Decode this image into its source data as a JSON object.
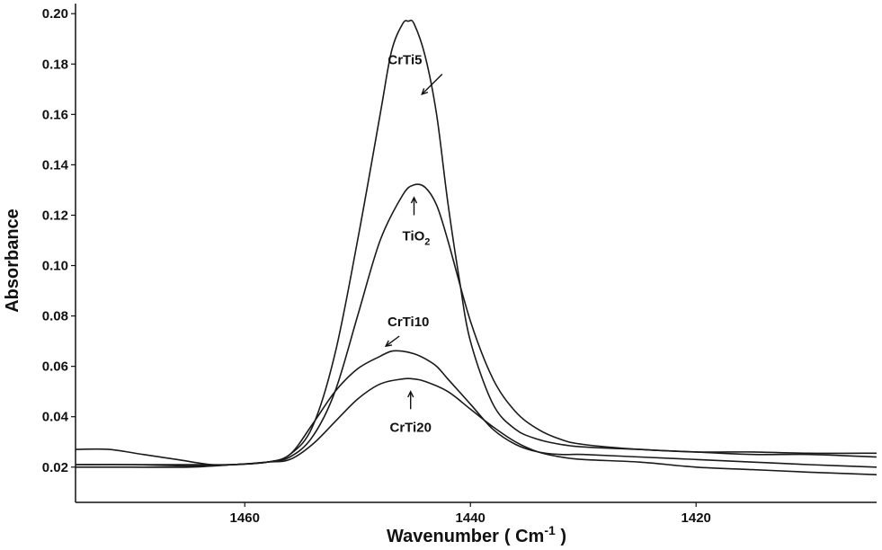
{
  "chart_data": {
    "type": "line",
    "title": "",
    "xlabel": "Wavenumber",
    "xlabel_unit_open": "( ",
    "xlabel_unit_base": "Cm",
    "xlabel_unit_sup": "-1",
    "xlabel_unit_close": " )",
    "ylabel": "Absorbance",
    "xlim": [
      1475,
      1404
    ],
    "ylim": [
      0.006,
      0.204
    ],
    "x_reversed": true,
    "grid": false,
    "xticks": [
      1460,
      1440,
      1420
    ],
    "xtick_labels": [
      "1460",
      "1440",
      "1420"
    ],
    "yticks": [
      0.02,
      0.04,
      0.06,
      0.08,
      0.1,
      0.12,
      0.14,
      0.16,
      0.18,
      0.2
    ],
    "ytick_labels": [
      "0.02",
      "0.04",
      "0.06",
      "0.08",
      "0.10",
      "0.12",
      "0.14",
      "0.16",
      "0.18",
      "0.20"
    ],
    "series": [
      {
        "name": "CrTi5",
        "x": [
          1475,
          1470,
          1465,
          1461,
          1458,
          1456,
          1454,
          1452,
          1450,
          1448,
          1447,
          1446,
          1445.5,
          1445,
          1444,
          1443,
          1442,
          1441,
          1440,
          1438,
          1436,
          1434,
          1432,
          1430,
          1425,
          1420,
          1415,
          1410,
          1404
        ],
        "y": [
          0.021,
          0.021,
          0.021,
          0.021,
          0.022,
          0.025,
          0.036,
          0.065,
          0.11,
          0.16,
          0.185,
          0.196,
          0.197,
          0.196,
          0.183,
          0.16,
          0.125,
          0.095,
          0.07,
          0.045,
          0.035,
          0.031,
          0.029,
          0.028,
          0.027,
          0.026,
          0.026,
          0.0255,
          0.0255
        ]
      },
      {
        "name": "TiO",
        "x": [
          1475,
          1470,
          1465,
          1461,
          1458,
          1456,
          1454,
          1452,
          1450,
          1448,
          1446,
          1445,
          1444,
          1443,
          1442,
          1440,
          1438,
          1436,
          1434,
          1432,
          1430,
          1425,
          1420,
          1415,
          1410,
          1404
        ],
        "y": [
          0.021,
          0.021,
          0.0205,
          0.021,
          0.022,
          0.024,
          0.032,
          0.05,
          0.08,
          0.11,
          0.128,
          0.132,
          0.131,
          0.124,
          0.11,
          0.078,
          0.055,
          0.042,
          0.035,
          0.031,
          0.029,
          0.027,
          0.026,
          0.025,
          0.025,
          0.024
        ]
      },
      {
        "name": "CrTi10",
        "x": [
          1475,
          1470,
          1465,
          1461,
          1458,
          1456,
          1454,
          1452,
          1450,
          1448,
          1447,
          1446,
          1445,
          1444,
          1443,
          1442,
          1440,
          1438,
          1436,
          1434,
          1432,
          1430,
          1425,
          1420,
          1415,
          1410,
          1404
        ],
        "y": [
          0.02,
          0.02,
          0.02,
          0.021,
          0.022,
          0.025,
          0.037,
          0.05,
          0.059,
          0.064,
          0.066,
          0.066,
          0.065,
          0.063,
          0.06,
          0.055,
          0.045,
          0.035,
          0.029,
          0.026,
          0.025,
          0.025,
          0.024,
          0.023,
          0.022,
          0.021,
          0.02
        ]
      },
      {
        "name": "CrTi20",
        "x": [
          1475,
          1472,
          1469,
          1466,
          1463,
          1461,
          1458,
          1456,
          1454,
          1452,
          1450,
          1448,
          1446,
          1445,
          1444,
          1442,
          1440,
          1438,
          1436,
          1434,
          1432,
          1430,
          1425,
          1420,
          1415,
          1410,
          1404
        ],
        "y": [
          0.027,
          0.027,
          0.025,
          0.023,
          0.021,
          0.021,
          0.022,
          0.023,
          0.029,
          0.038,
          0.047,
          0.053,
          0.055,
          0.055,
          0.054,
          0.05,
          0.043,
          0.036,
          0.03,
          0.026,
          0.024,
          0.023,
          0.022,
          0.02,
          0.019,
          0.018,
          0.017
        ]
      }
    ],
    "annotations": [
      {
        "text": "CrTi5",
        "sub": "",
        "text_x": 1445.8,
        "text_y": 0.18,
        "arrow_from": [
          1442.5,
          0.176
        ],
        "arrow_to": [
          1444.3,
          0.168
        ]
      },
      {
        "text": "TiO",
        "sub": "2",
        "text_x": 1444.8,
        "text_y": 0.11,
        "arrow_from": [
          1445.0,
          0.12
        ],
        "arrow_to": [
          1445.0,
          0.127
        ]
      },
      {
        "text": "CrTi10",
        "sub": "",
        "text_x": 1445.5,
        "text_y": 0.076,
        "arrow_from": [
          1446.3,
          0.072
        ],
        "arrow_to": [
          1447.5,
          0.068
        ]
      },
      {
        "text": "CrTi20",
        "sub": "",
        "text_x": 1445.3,
        "text_y": 0.034,
        "arrow_from": [
          1445.3,
          0.043
        ],
        "arrow_to": [
          1445.3,
          0.05
        ]
      }
    ]
  }
}
